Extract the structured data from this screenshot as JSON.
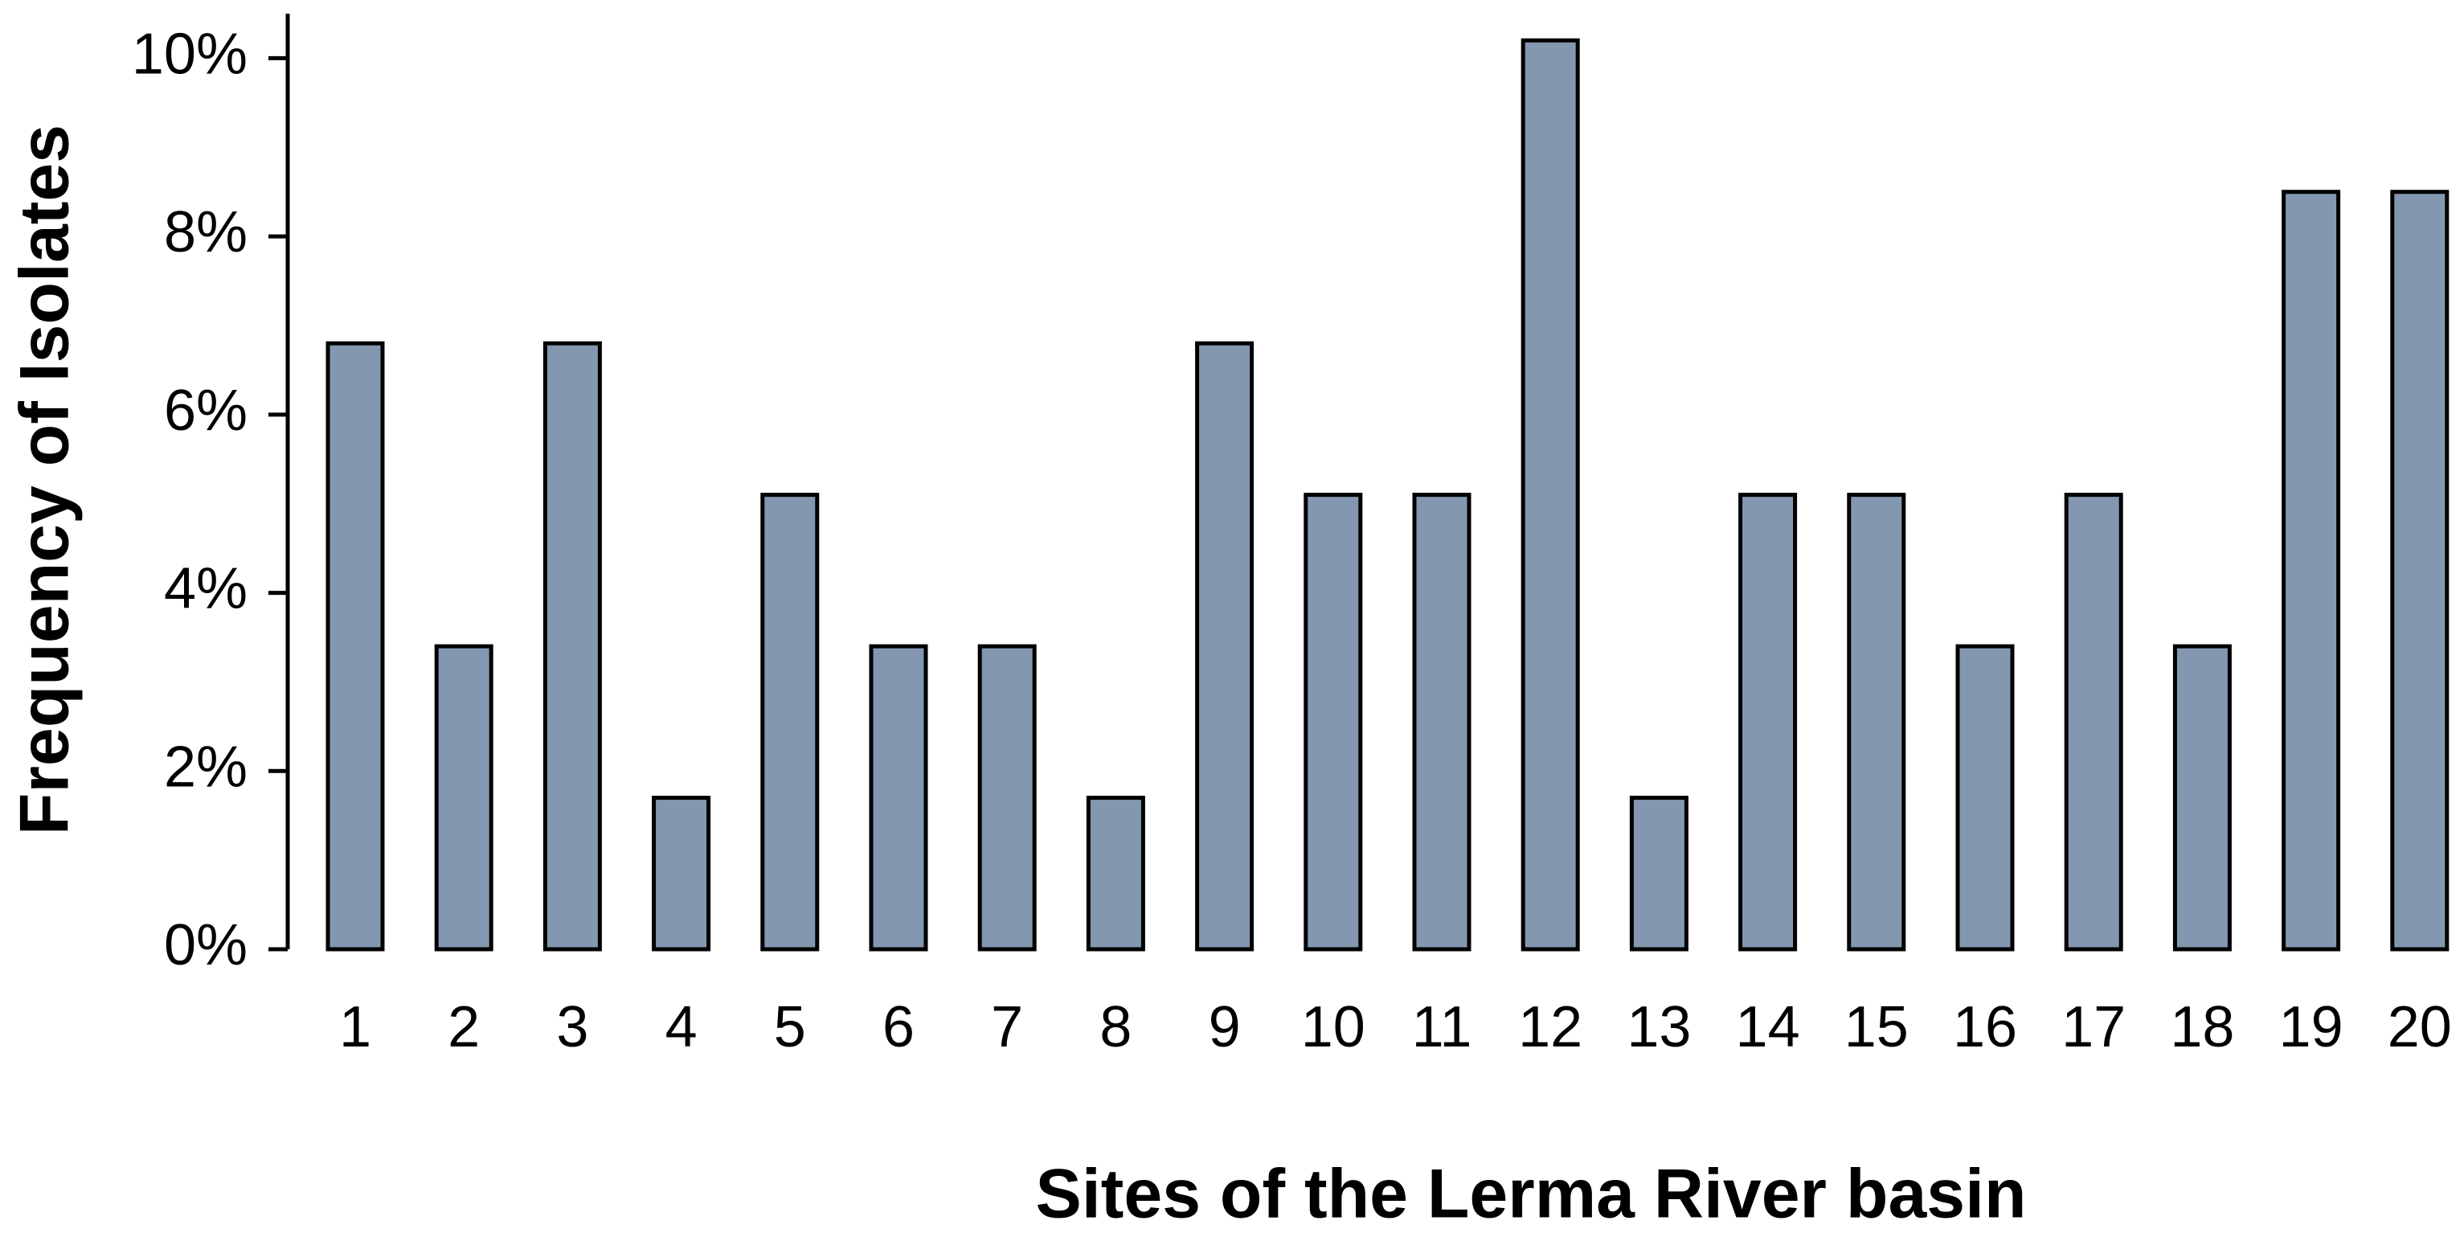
{
  "chart_data": {
    "type": "bar",
    "x_label": "Sites of the Lerma River basin",
    "y_label": "Frequency of Isolates",
    "categories": [
      "1",
      "2",
      "3",
      "4",
      "5",
      "6",
      "7",
      "8",
      "9",
      "10",
      "11",
      "12",
      "13",
      "14",
      "15",
      "16",
      "17",
      "18",
      "19",
      "20"
    ],
    "values": [
      6.8,
      3.4,
      6.8,
      1.7,
      5.1,
      3.4,
      3.4,
      1.7,
      6.8,
      5.1,
      5.1,
      10.2,
      1.7,
      5.1,
      5.1,
      3.4,
      5.1,
      3.4,
      8.5,
      8.5
    ],
    "color": "#8497b0",
    "ylim": [
      0,
      10.5
    ],
    "yticks": [
      {
        "value": 0,
        "label": "0%"
      },
      {
        "value": 2,
        "label": "2%"
      },
      {
        "value": 4,
        "label": "4%"
      },
      {
        "value": 6,
        "label": "6%"
      },
      {
        "value": 8,
        "label": "8%"
      },
      {
        "value": 10,
        "label": "10%"
      }
    ],
    "grid": false
  }
}
